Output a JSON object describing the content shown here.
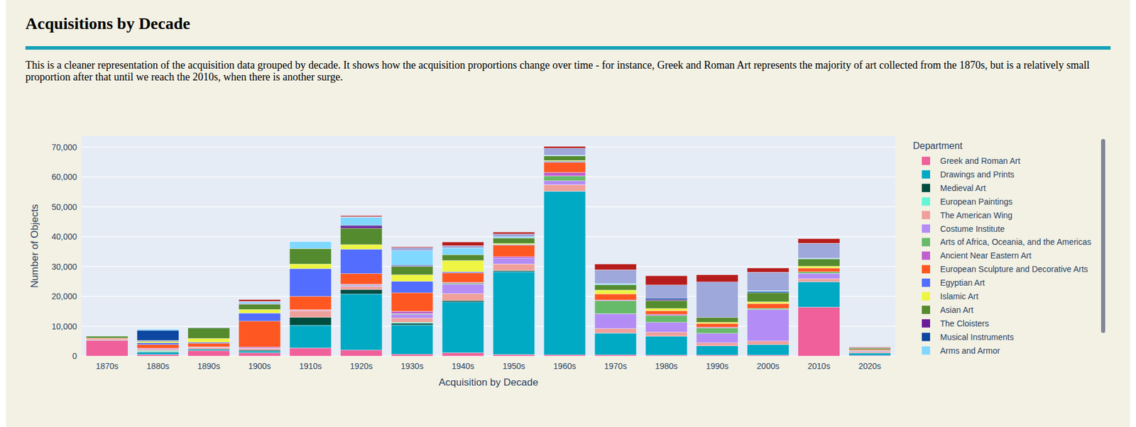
{
  "chart_data": {
    "type": "bar",
    "stacked": true,
    "title": "Acquisitions by Decade",
    "subtitle": "This is a cleaner representation of the acquisition data grouped by decade. It shows how the acquisition proportions change over time - for instance, Greek and Roman Art represents the majority of art collected from the 1870s, but is a relatively small proportion after that until we reach the 2010s, when there is another surge.",
    "x_label": "Acquisition by Decade",
    "y_label": "Number of Objects",
    "legend_title": "Department",
    "legend": "right",
    "grid": true,
    "categories": [
      "1870s",
      "1880s",
      "1890s",
      "1900s",
      "1910s",
      "1920s",
      "1930s",
      "1940s",
      "1950s",
      "1960s",
      "1970s",
      "1980s",
      "1990s",
      "2000s",
      "2010s",
      "2020s"
    ],
    "ylim": [
      0,
      73700
    ],
    "yticks": [
      0,
      {
        "value": 10000,
        "label": "10,000"
      },
      {
        "value": 20000,
        "label": "20,000"
      },
      {
        "value": 30000,
        "label": "30,000"
      },
      {
        "value": 40000,
        "label": "40,000"
      },
      {
        "value": 50000,
        "label": "50,000"
      },
      {
        "value": 60000,
        "label": "60,000"
      },
      {
        "value": 70000,
        "label": "70,000"
      }
    ],
    "series": [
      {
        "name": "Greek and Roman Art",
        "color": "#f0609a",
        "values": [
          5300,
          500,
          1800,
          1100,
          2700,
          2000,
          600,
          1100,
          500,
          400,
          400,
          300,
          300,
          300,
          16400,
          200
        ]
      },
      {
        "name": "Drawings and Prints",
        "color": "#00a9c4",
        "values": [
          100,
          800,
          400,
          600,
          7600,
          18800,
          9800,
          17000,
          27800,
          54800,
          7300,
          6300,
          3100,
          3500,
          8500,
          800
        ]
      },
      {
        "name": "Medieval Art",
        "color": "#004d40",
        "values": [
          0,
          200,
          200,
          300,
          2700,
          1500,
          600,
          500,
          300,
          0,
          0,
          0,
          0,
          0,
          0,
          0
        ]
      },
      {
        "name": "European Paintings",
        "color": "#64f5d6",
        "values": [
          0,
          300,
          0,
          0,
          0,
          0,
          300,
          0,
          0,
          0,
          0,
          0,
          0,
          0,
          0,
          0
        ]
      },
      {
        "name": "The American Wing",
        "color": "#f0a09a",
        "values": [
          400,
          400,
          500,
          500,
          2200,
          1000,
          1400,
          2300,
          2200,
          2200,
          1500,
          1400,
          1000,
          1200,
          1000,
          400
        ]
      },
      {
        "name": "Costume Institute",
        "color": "#b48cf5",
        "values": [
          0,
          200,
          0,
          200,
          100,
          300,
          1200,
          3200,
          2000,
          1300,
          5000,
          3300,
          3200,
          10600,
          1800,
          300
        ]
      },
      {
        "name": "Arts of Africa, Oceania, and the Americas",
        "color": "#66bb6a",
        "values": [
          0,
          0,
          0,
          0,
          0,
          200,
          300,
          300,
          0,
          1600,
          4300,
          2300,
          1800,
          400,
          500,
          200
        ]
      },
      {
        "name": "Ancient Near Eastern Art",
        "color": "#c060d0",
        "values": [
          0,
          200,
          200,
          300,
          200,
          300,
          800,
          300,
          500,
          1200,
          300,
          400,
          300,
          0,
          0,
          0
        ]
      },
      {
        "name": "European Sculpture and Decorative Arts",
        "color": "#ff5722",
        "values": [
          200,
          1200,
          1200,
          8700,
          4500,
          3500,
          6200,
          3200,
          3800,
          3400,
          2000,
          1200,
          1200,
          1600,
          1300,
          300
        ]
      },
      {
        "name": "Egyptian Art",
        "color": "#536dfe",
        "values": [
          0,
          600,
          300,
          2700,
          9300,
          8200,
          3800,
          300,
          300,
          300,
          0,
          0,
          0,
          0,
          0,
          0
        ]
      },
      {
        "name": "Islamic Art",
        "color": "#eef542",
        "values": [
          0,
          400,
          1300,
          1200,
          1500,
          1500,
          2200,
          3800,
          300,
          300,
          1300,
          700,
          400,
          600,
          600,
          0
        ]
      },
      {
        "name": "Asian Art",
        "color": "#558b2f",
        "values": [
          700,
          300,
          3500,
          1800,
          5200,
          5500,
          2800,
          1900,
          1800,
          1500,
          1800,
          2700,
          1600,
          3000,
          2400,
          400
        ]
      },
      {
        "name": "The Cloisters",
        "color": "#6a1b9a",
        "values": [
          0,
          100,
          0,
          200,
          0,
          800,
          200,
          0,
          0,
          0,
          0,
          300,
          0,
          0,
          0,
          0
        ]
      },
      {
        "name": "Musical Instruments",
        "color": "#0d47a1",
        "values": [
          0,
          3400,
          100,
          0,
          0,
          300,
          300,
          0,
          0,
          0,
          0,
          500,
          0,
          400,
          0,
          0
        ]
      },
      {
        "name": "Arms and Armor",
        "color": "#80d8ff",
        "values": [
          100,
          400,
          0,
          500,
          2300,
          2600,
          4800,
          2300,
          400,
          300,
          400,
          0,
          0,
          300,
          300,
          0
        ]
      },
      {
        "name": null,
        "color": "#9fa8da",
        "values": [
          0,
          0,
          0,
          200,
          0,
          200,
          1000,
          800,
          1000,
          2300,
          4600,
          4400,
          11900,
          6200,
          5000,
          200
        ]
      },
      {
        "name": null,
        "color": "#b71c1c",
        "values": [
          0,
          0,
          0,
          600,
          0,
          300,
          300,
          1200,
          600,
          600,
          1900,
          3100,
          2400,
          1400,
          1500,
          200
        ]
      }
    ]
  }
}
